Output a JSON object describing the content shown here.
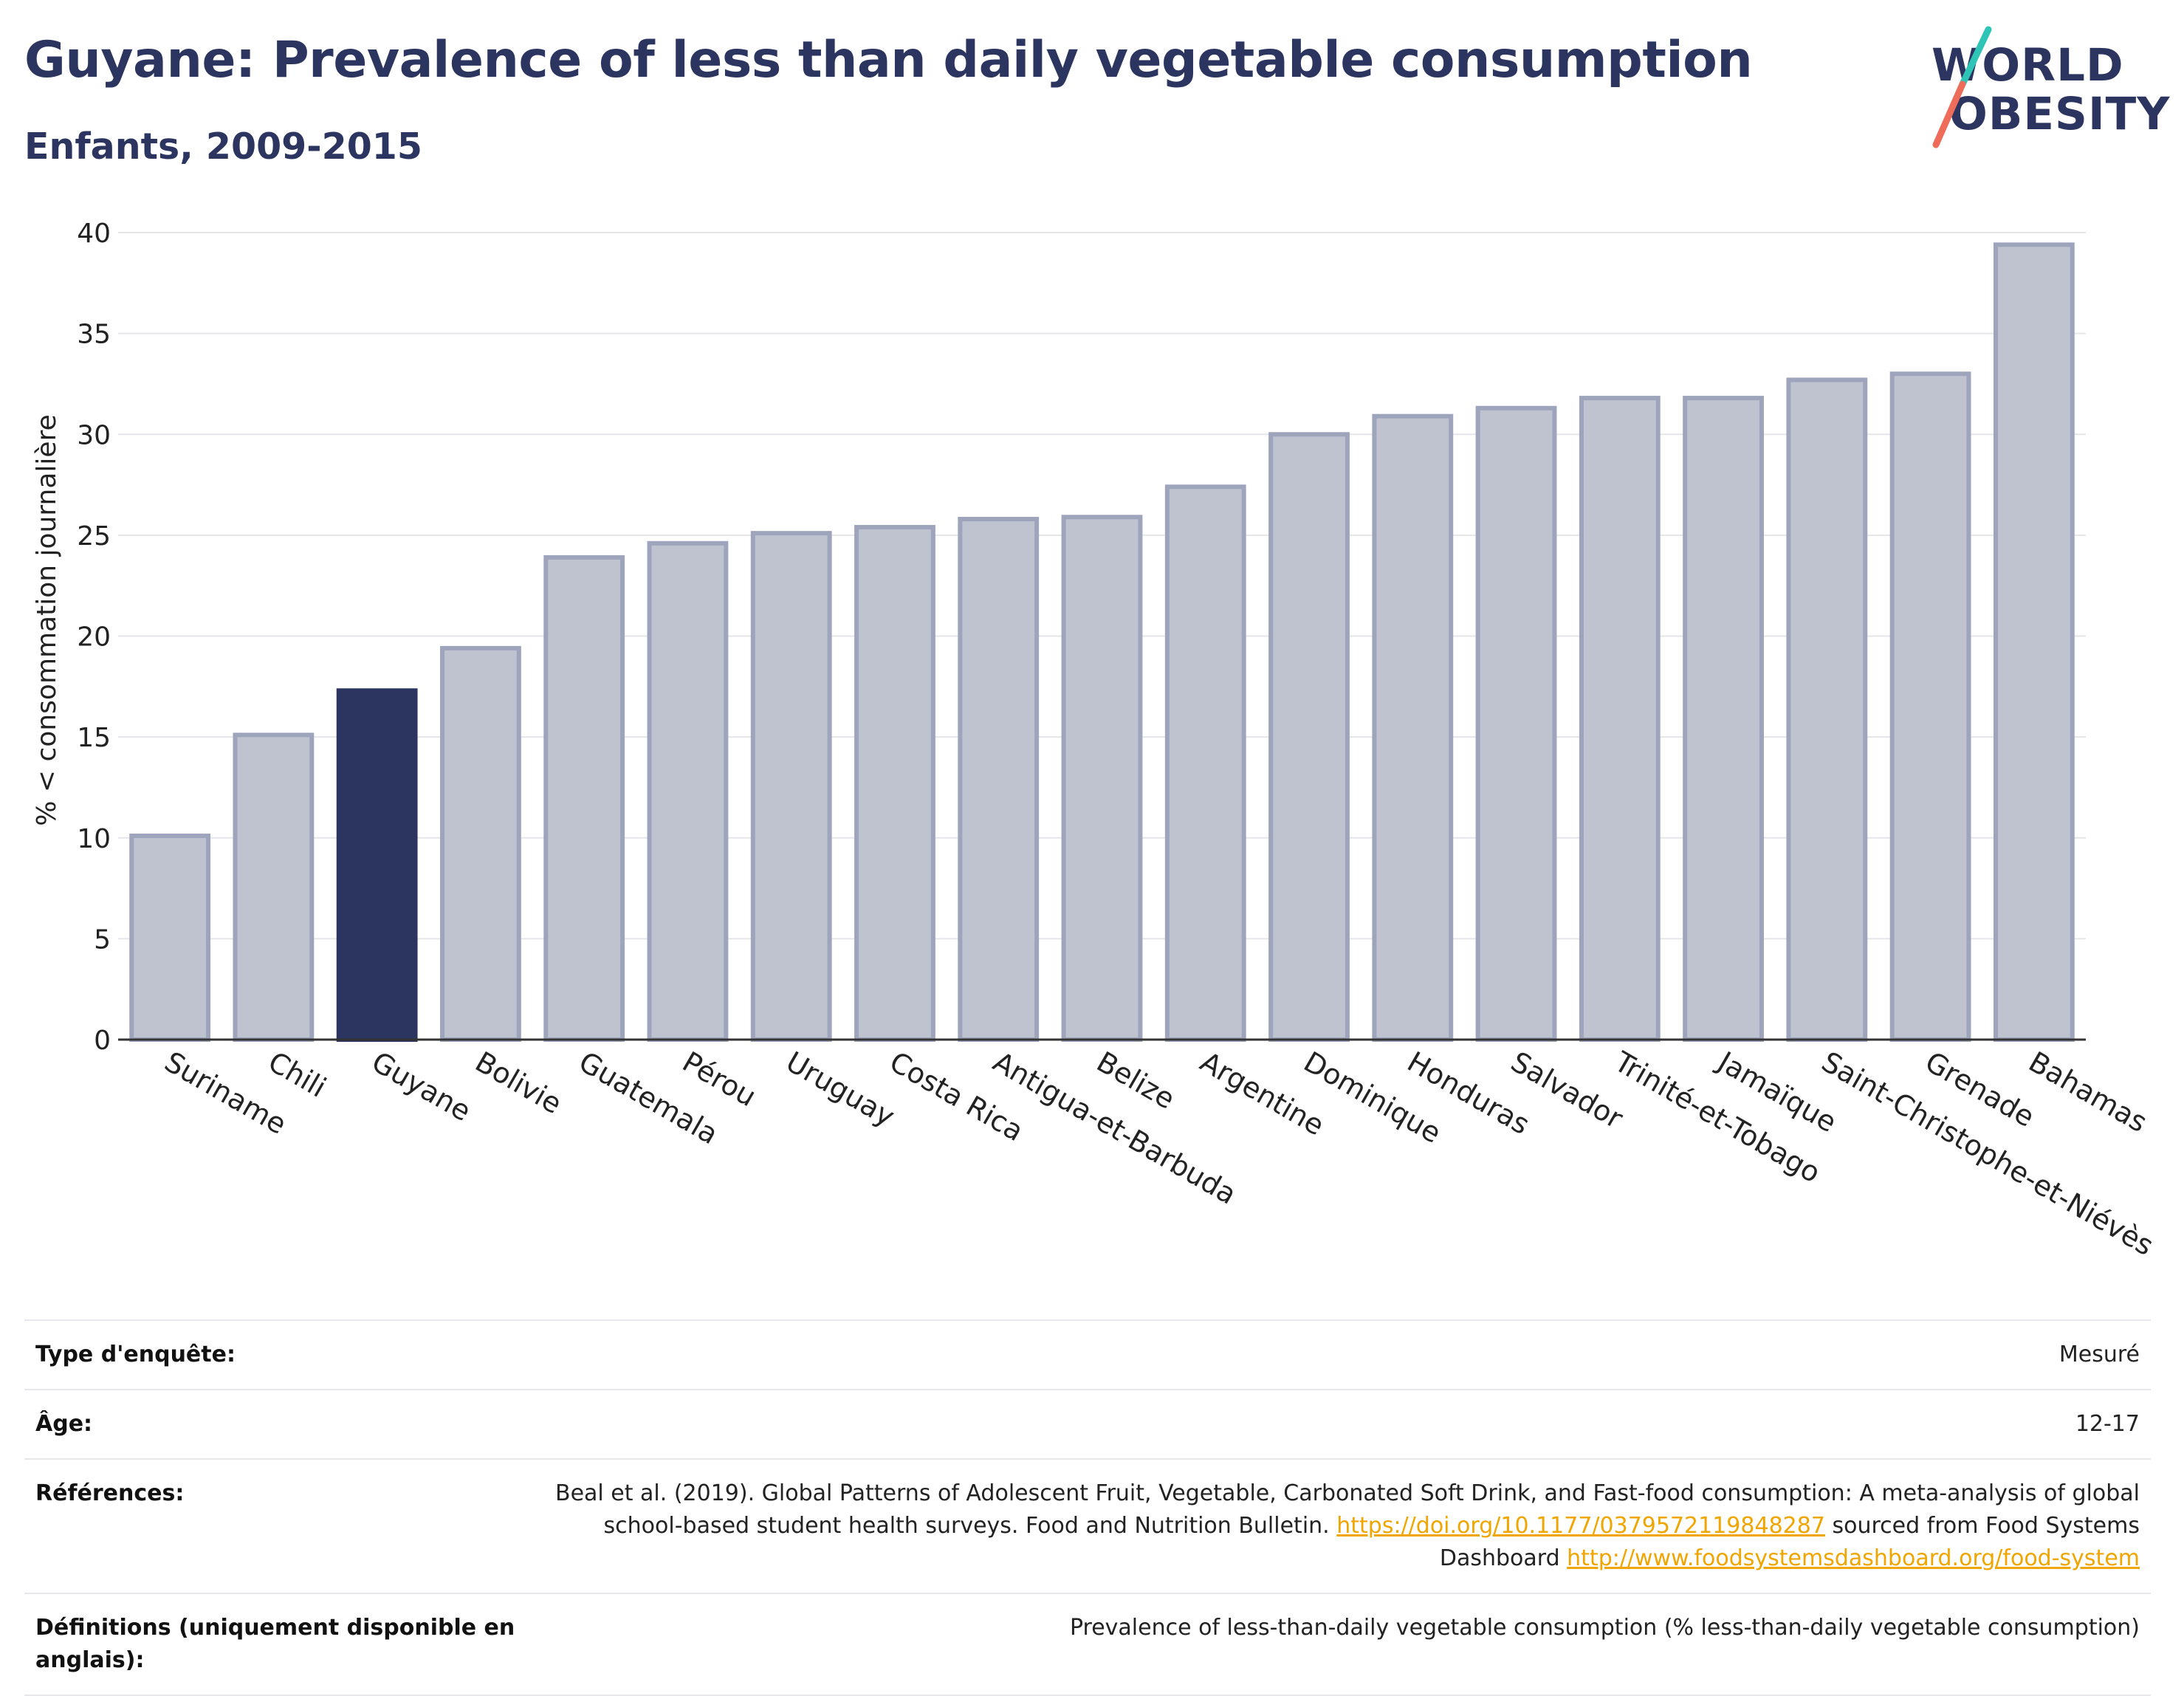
{
  "header": {
    "title": "Guyane: Prevalence of less than daily vegetable consumption",
    "subtitle": "Enfants, 2009-2015"
  },
  "logo": {
    "line1": "WORLD",
    "line2": "OBESITY"
  },
  "colors": {
    "highlight_bar": "#2b3560",
    "bar": "#bfc3d0",
    "bar_outline": "#9ea4bb",
    "title": "#2b3560",
    "link": "#f0a500"
  },
  "chart_data": {
    "type": "bar",
    "ylabel": "% < consommation journalière",
    "ylim": [
      0,
      40
    ],
    "yticks": [
      0,
      5,
      10,
      15,
      20,
      25,
      30,
      35,
      40
    ],
    "grid": true,
    "highlight": "Guyane",
    "categories": [
      "Suriname",
      "Chili",
      "Guyane",
      "Bolivie",
      "Guatemala",
      "Pérou",
      "Uruguay",
      "Costa Rica",
      "Antigua-et-Barbuda",
      "Belize",
      "Argentine",
      "Dominique",
      "Honduras",
      "Salvador",
      "Trinité-et-Tobago",
      "Jamaïque",
      "Saint-Christophe-et-Niévès",
      "Grenade",
      "Bahamas"
    ],
    "values": [
      10.1,
      15.1,
      17.3,
      19.4,
      23.9,
      24.6,
      25.1,
      25.4,
      25.8,
      25.9,
      27.4,
      30.0,
      30.9,
      31.3,
      31.8,
      31.8,
      32.7,
      33.0,
      39.4
    ]
  },
  "info": {
    "survey_label": "Type d'enquête:",
    "survey_value": "Mesuré",
    "age_label": "Âge:",
    "age_value": "12-17",
    "refs_label": "Références:",
    "refs_text1": "Beal et al. (2019). Global Patterns of Adolescent Fruit, Vegetable, Carbonated Soft Drink, and Fast-food consumption: A meta-analysis of global school-based student health surveys. Food and Nutrition Bulletin. ",
    "refs_link1": "https://doi.org/10.1177/0379572119848287",
    "refs_text2": " sourced from Food Systems Dashboard ",
    "refs_link2": "http://www.foodsystemsdashboard.org/food-system",
    "defs_label": "Définitions (uniquement disponible en anglais):",
    "defs_value": "Prevalence of less-than-daily vegetable consumption (% less-than-daily vegetable consumption)"
  }
}
